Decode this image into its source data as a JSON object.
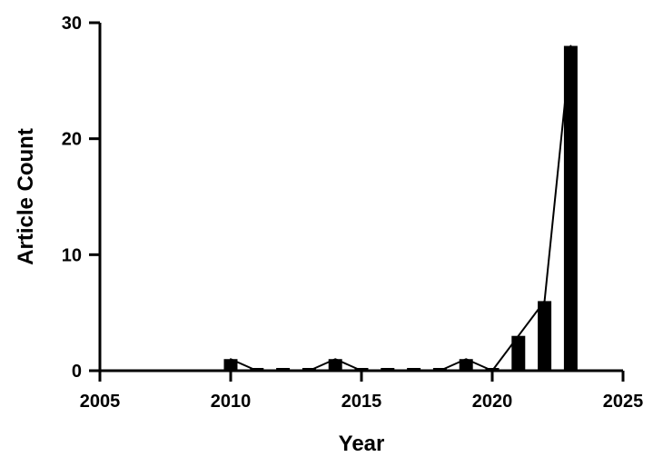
{
  "chart_data": {
    "type": "bar",
    "xlabel": "Year",
    "ylabel": "Article Count",
    "xlim": [
      2005,
      2025
    ],
    "ylim": [
      0,
      30
    ],
    "x_ticks": [
      2005,
      2010,
      2015,
      2020,
      2025
    ],
    "y_ticks": [
      0,
      10,
      20,
      30
    ],
    "x_tick_labels": [
      "2005",
      "2010",
      "2015",
      "2020",
      "2025"
    ],
    "y_tick_labels": [
      "0",
      "10",
      "20",
      "30"
    ],
    "x": [
      2010,
      2011,
      2012,
      2013,
      2014,
      2015,
      2016,
      2017,
      2018,
      2019,
      2020,
      2021,
      2022,
      2023
    ],
    "values": [
      1,
      0,
      0,
      0,
      1,
      0,
      0,
      0,
      0,
      1,
      0,
      3,
      6,
      28
    ],
    "overlay_line": true,
    "grid": false,
    "colors": {
      "bar": "#000000",
      "line": "#000000",
      "axis": "#000000",
      "background": "#ffffff"
    }
  }
}
